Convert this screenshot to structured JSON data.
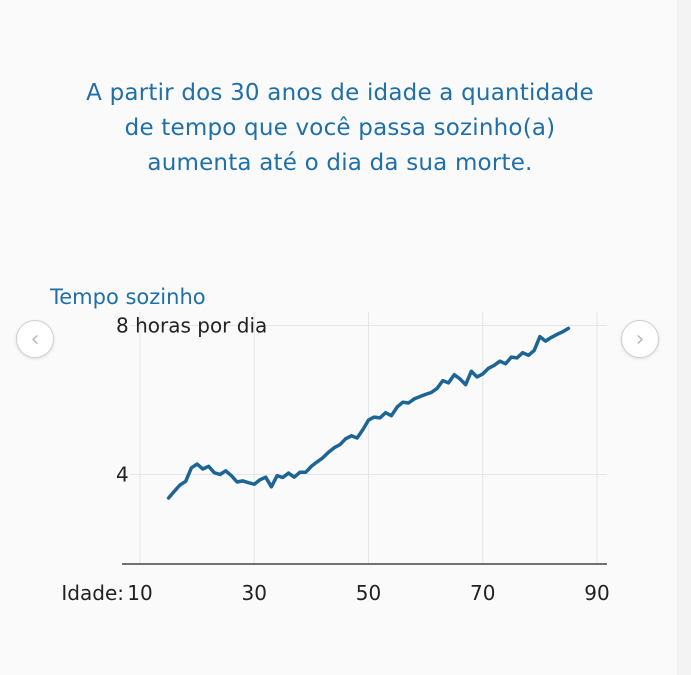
{
  "headline": {
    "line1": "A partir dos 30 anos de idade a quantidade",
    "line2": "de tempo que você passa sozinho(a)",
    "line3": "aumenta até o dia da sua morte."
  },
  "navigation": {
    "prev_icon": "chevron-left-icon",
    "next_icon": "chevron-right-icon",
    "prev_glyph": "‹",
    "next_glyph": "›"
  },
  "colors": {
    "text": "#1f6fa8",
    "line": "#1c6594",
    "grid": "#e6e6e6",
    "axis": "#222222"
  },
  "chart_data": {
    "type": "line",
    "title": "Tempo sozinho",
    "x_prefix": "Idade:",
    "xlim": [
      10,
      90
    ],
    "ylim": [
      1.6,
      8.2
    ],
    "x_ticks": [
      10,
      30,
      50,
      70,
      90
    ],
    "x_tick_labels": [
      "10",
      "30",
      "50",
      "70",
      "90"
    ],
    "y_ticks": [
      4,
      8
    ],
    "y_tick_labels": [
      "4",
      "8 horas por dia"
    ],
    "grid": true,
    "series": [
      {
        "x": [
          15,
          16,
          17,
          18,
          19,
          20,
          21,
          22,
          23,
          24,
          25,
          26,
          27,
          28,
          29,
          30,
          31,
          32,
          33,
          34,
          35,
          36,
          37,
          38,
          39,
          40,
          41,
          42,
          43,
          44,
          45,
          46,
          47,
          48,
          49,
          50,
          51,
          52,
          53,
          54,
          55,
          56,
          57,
          58,
          59,
          60,
          61,
          62,
          63,
          64,
          65,
          66,
          67,
          68,
          69,
          70,
          71,
          72,
          73,
          74,
          75,
          76,
          77,
          78,
          79,
          80,
          81,
          82,
          83,
          84,
          85
        ],
        "y": [
          3.37,
          3.55,
          3.72,
          3.82,
          4.18,
          4.28,
          4.15,
          4.22,
          4.05,
          4.0,
          4.1,
          3.97,
          3.8,
          3.83,
          3.78,
          3.74,
          3.86,
          3.93,
          3.67,
          3.97,
          3.92,
          4.04,
          3.93,
          4.06,
          4.06,
          4.22,
          4.34,
          4.45,
          4.6,
          4.72,
          4.8,
          4.96,
          5.04,
          4.98,
          5.2,
          5.46,
          5.54,
          5.52,
          5.66,
          5.58,
          5.81,
          5.94,
          5.92,
          6.03,
          6.09,
          6.15,
          6.2,
          6.31,
          6.52,
          6.46,
          6.68,
          6.57,
          6.41,
          6.77,
          6.62,
          6.7,
          6.85,
          6.93,
          7.04,
          6.97,
          7.15,
          7.13,
          7.27,
          7.2,
          7.33,
          7.7,
          7.58,
          7.68,
          7.76,
          7.83,
          7.92
        ]
      }
    ]
  }
}
